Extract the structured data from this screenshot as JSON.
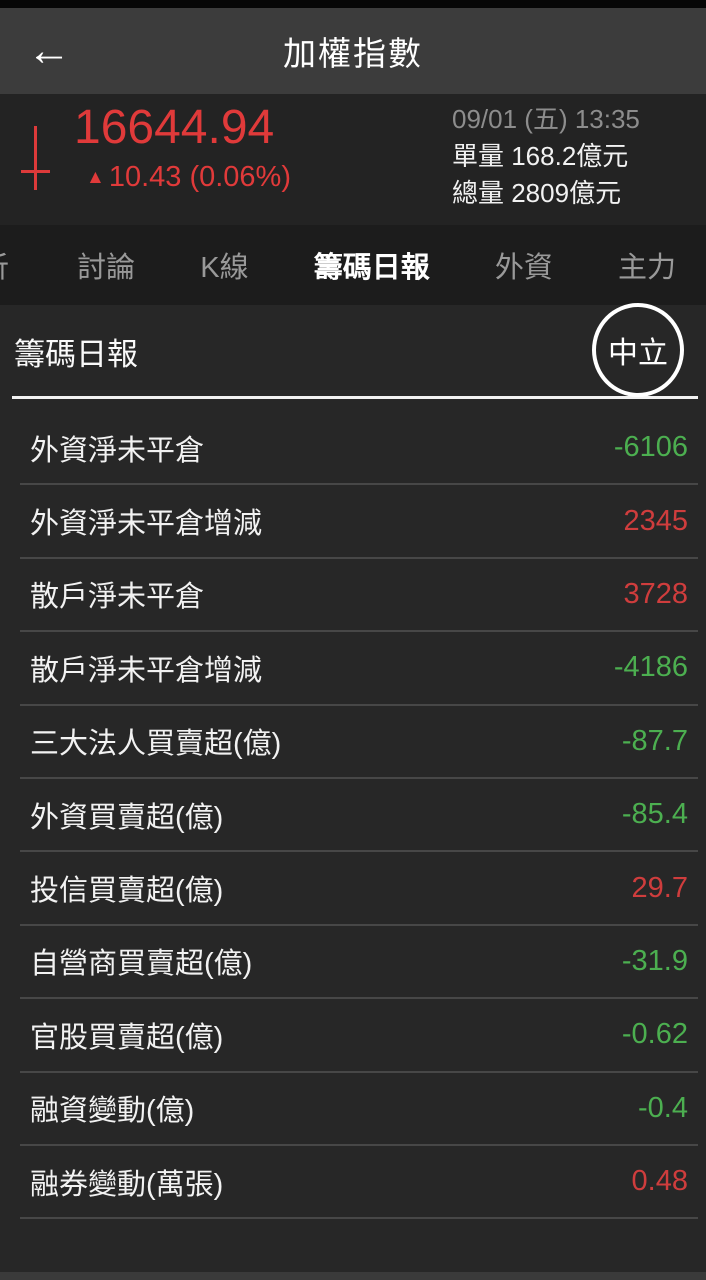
{
  "app": {
    "title": "加權指數",
    "back_icon": "←"
  },
  "quote": {
    "price": "16644.94",
    "up_arrow": "▲",
    "change": "10.43 (0.06%)",
    "datetime": "09/01 (五) 13:35",
    "unit_volume": "單量 168.2億元",
    "total_volume": "總量 2809億元"
  },
  "tabs": {
    "partial_left": "析",
    "items": [
      {
        "label": "討論",
        "active": false
      },
      {
        "label": "K線",
        "active": false
      },
      {
        "label": "籌碼日報",
        "active": true
      },
      {
        "label": "外資",
        "active": false
      },
      {
        "label": "主力",
        "active": false
      }
    ]
  },
  "section": {
    "title": "籌碼日報",
    "badge_label": "中立"
  },
  "table": {
    "rows": [
      {
        "label": "外資淨未平倉",
        "value": "-6106",
        "color": "green"
      },
      {
        "label": "外資淨未平倉增減",
        "value": "2345",
        "color": "red"
      },
      {
        "label": "散戶淨未平倉",
        "value": "3728",
        "color": "red"
      },
      {
        "label": "散戶淨未平倉增減",
        "value": "-4186",
        "color": "green"
      },
      {
        "label": "三大法人買賣超(億)",
        "value": "-87.7",
        "color": "green"
      },
      {
        "label": "外資買賣超(億)",
        "value": "-85.4",
        "color": "green"
      },
      {
        "label": "投信買賣超(億)",
        "value": "29.7",
        "color": "red"
      },
      {
        "label": "自營商買賣超(億)",
        "value": "-31.9",
        "color": "green"
      },
      {
        "label": "官股買賣超(億)",
        "value": "-0.62",
        "color": "green"
      },
      {
        "label": "融資變動(億)",
        "value": "-0.4",
        "color": "green"
      },
      {
        "label": "融券變動(萬張)",
        "value": "0.48",
        "color": "red"
      }
    ]
  },
  "colors": {
    "up_red": "#e03a3a",
    "value_red": "#cf3d3d",
    "value_green": "#4caf50"
  }
}
